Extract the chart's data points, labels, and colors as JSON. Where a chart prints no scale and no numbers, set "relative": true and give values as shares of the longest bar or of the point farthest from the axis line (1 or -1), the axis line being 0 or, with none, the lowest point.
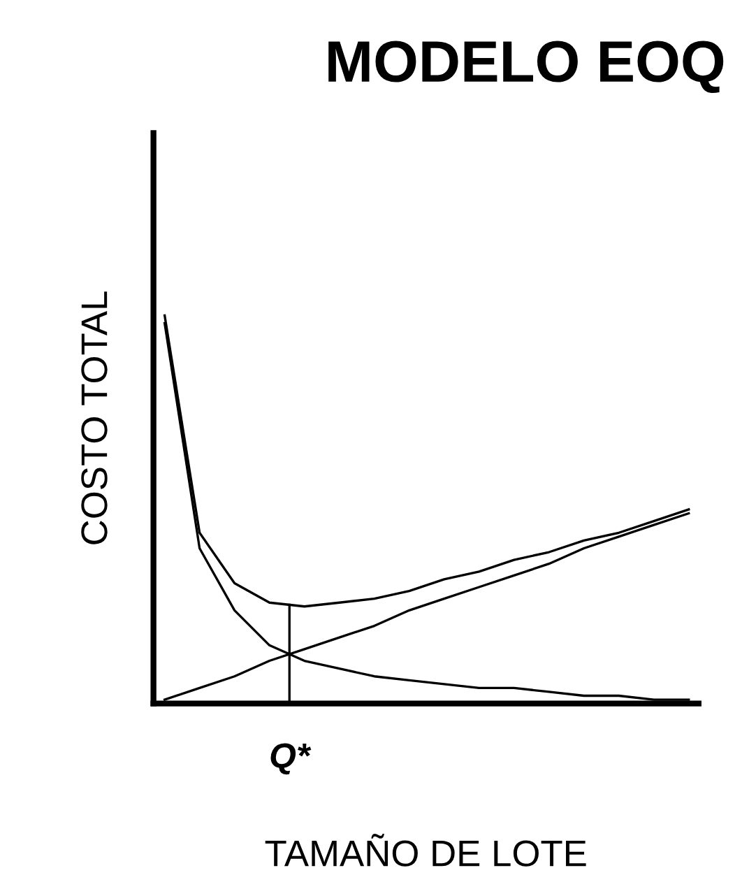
{
  "chart_data": {
    "type": "line",
    "title": "MODELO EOQ",
    "xlabel": "TAMAÑO DE LOTE",
    "ylabel": "COSTO TOTAL",
    "relative": true,
    "tick_labels": false,
    "legend": false,
    "annotations": [
      "Q*"
    ],
    "categories": [
      null,
      null,
      null,
      null,
      null,
      null,
      null,
      null,
      null,
      null,
      null,
      null,
      null,
      null,
      null,
      null
    ],
    "series": [
      {
        "color": "#000000",
        "values": [
          1.0,
          0.44,
          0.31,
          0.26,
          0.25,
          0.26,
          0.27,
          0.29,
          0.32,
          0.34,
          0.37,
          0.39,
          0.42,
          0.44,
          0.47,
          0.5
        ]
      },
      {
        "color": "#000000",
        "values": [
          0.01,
          0.04,
          0.07,
          0.11,
          0.14,
          0.17,
          0.2,
          0.24,
          0.27,
          0.3,
          0.33,
          0.36,
          0.4,
          0.43,
          0.46,
          0.49
        ]
      },
      {
        "color": "#000000",
        "values": [
          0.98,
          0.4,
          0.24,
          0.15,
          0.11,
          0.09,
          0.07,
          0.06,
          0.05,
          0.04,
          0.04,
          0.03,
          0.02,
          0.02,
          0.01,
          0.01
        ]
      }
    ]
  }
}
